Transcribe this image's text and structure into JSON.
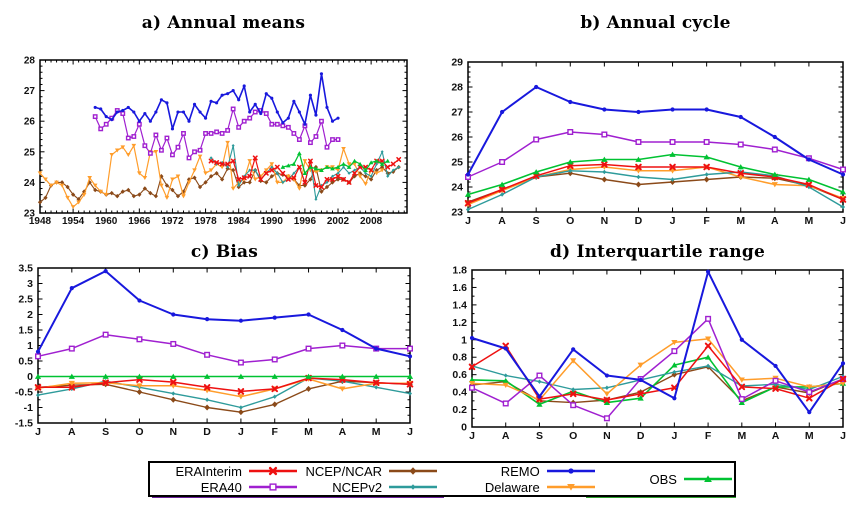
{
  "figure": {
    "background": "#ffffff",
    "text_color": "#000000"
  },
  "series_styles": {
    "ERAInterim": {
      "color": "#ee1111",
      "marker": "x"
    },
    "ERA40": {
      "color": "#a020d0",
      "marker": "square-open"
    },
    "NCEP/NCAR": {
      "color": "#8b4a19",
      "marker": "diamond"
    },
    "NCEPv2": {
      "color": "#2e9b9b",
      "marker": "diamond-small"
    },
    "REMO": {
      "color": "#1818dd",
      "marker": "circle"
    },
    "Delaware": {
      "color": "#ff9d2b",
      "marker": "triangle-down"
    },
    "OBS": {
      "color": "#00c232",
      "marker": "triangle-up"
    }
  },
  "legend": {
    "columns": [
      [
        "ERAInterim",
        "ERA40"
      ],
      [
        "NCEP/NCAR",
        "NCEPv2"
      ],
      [
        "REMO",
        "Delaware"
      ],
      [
        "OBS"
      ]
    ]
  },
  "chart_data": [
    {
      "id": "a",
      "type": "line",
      "title": "a) Annual means",
      "x_axis": {
        "min": 1948,
        "max": 2014.5,
        "minor_step": 1,
        "tick_values": [
          1948,
          1954,
          1960,
          1966,
          1972,
          1978,
          1984,
          1990,
          1996,
          2002,
          2008
        ],
        "tick_labels": [
          "1948",
          "1954",
          "1960",
          "1966",
          "1972",
          "1978",
          "1984",
          "1990",
          "1996",
          "2002",
          "2008"
        ]
      },
      "y_axis": {
        "min": 23,
        "max": 28,
        "minor_step": 0.2,
        "tick_values": [
          23,
          24,
          25,
          26,
          27,
          28
        ],
        "tick_labels": [
          "23",
          "24",
          "25",
          "26",
          "27",
          "28"
        ]
      },
      "series": [
        {
          "name": "NCEP/NCAR",
          "start": 1948,
          "step": 1,
          "values": [
            23.35,
            23.5,
            23.9,
            24.0,
            24.0,
            23.85,
            23.6,
            23.45,
            23.7,
            24.0,
            23.75,
            23.7,
            23.6,
            23.65,
            23.55,
            23.7,
            23.75,
            23.55,
            23.6,
            23.8,
            23.65,
            23.55,
            24.2,
            23.9,
            23.75,
            23.55,
            23.7,
            24.1,
            24.15,
            23.85,
            24.0,
            24.2,
            24.3,
            24.1,
            24.45,
            24.4,
            23.85,
            24.0,
            24.0,
            24.4,
            24.05,
            24.0,
            24.2,
            24.3,
            24.25,
            24.2,
            24.1,
            23.9,
            23.9,
            24.1,
            24.5,
            23.7,
            23.85,
            24.0,
            24.1,
            24.1,
            24.0,
            24.2,
            24.3,
            24.2,
            24.1,
            24.4,
            24.5,
            24.3,
            24.35,
            24.5
          ]
        },
        {
          "name": "Delaware",
          "start": 1948,
          "step": 1,
          "values": [
            24.3,
            24.1,
            23.9,
            24.0,
            23.9,
            23.5,
            23.2,
            23.35,
            23.6,
            24.15,
            23.9,
            23.7,
            23.6,
            24.9,
            25.05,
            25.15,
            24.9,
            25.2,
            24.3,
            24.15,
            25.0,
            25.0,
            23.9,
            23.5,
            24.1,
            24.2,
            23.55,
            24.0,
            24.4,
            24.85,
            24.3,
            24.4,
            24.6,
            24.5,
            25.3,
            23.8,
            24.0,
            24.1,
            24.7,
            24.1,
            24.2,
            24.4,
            24.6,
            24.0,
            24.0,
            24.2,
            24.1,
            23.8,
            24.7,
            24.4,
            24.35,
            24.4,
            24.5,
            24.5,
            24.4,
            25.1,
            24.6,
            24.6,
            24.2,
            23.95,
            24.4,
            24.3,
            24.4
          ]
        },
        {
          "name": "NCEPv2",
          "start": 1979,
          "step": 1,
          "values": [
            24.8,
            24.6,
            24.65,
            24.5,
            25.2,
            23.9,
            24.2,
            24.4,
            24.4,
            24.1,
            24.3,
            24.5,
            24.3,
            24.0,
            24.1,
            24.3,
            24.5,
            24.0,
            24.7,
            23.45,
            23.9,
            24.0,
            24.2,
            24.3,
            24.5,
            24.3,
            24.4,
            24.5,
            24.3,
            24.2,
            24.6,
            25.0,
            24.2,
            24.4,
            24.5
          ]
        },
        {
          "name": "ERAInterim",
          "start": 1979,
          "step": 1,
          "values": [
            24.7,
            24.65,
            24.6,
            24.6,
            24.7,
            24.1,
            24.15,
            24.2,
            24.8,
            24.1,
            24.3,
            24.4,
            24.5,
            24.3,
            24.1,
            24.15,
            24.5,
            24.0,
            24.7,
            23.9,
            23.85,
            24.1,
            24.1,
            24.2,
            24.1,
            24.0,
            24.3,
            24.5,
            24.5,
            24.4,
            24.7,
            24.7,
            24.5,
            24.6,
            24.75
          ]
        },
        {
          "name": "OBS",
          "start": 1992,
          "step": 1,
          "values": [
            24.5,
            24.55,
            24.6,
            24.95,
            24.3,
            24.5,
            24.45,
            24.4,
            24.5,
            24.45,
            24.5,
            24.6,
            24.5,
            24.7,
            24.6,
            24.4,
            24.65,
            24.7,
            24.6,
            24.7
          ]
        },
        {
          "name": "ERA40",
          "start": 1958,
          "step": 1,
          "values": [
            26.15,
            25.75,
            25.9,
            26.1,
            26.35,
            26.25,
            25.45,
            25.5,
            25.9,
            25.2,
            24.95,
            25.55,
            25.05,
            25.45,
            24.9,
            25.15,
            25.6,
            24.8,
            25.0,
            25.05,
            25.6,
            25.6,
            25.65,
            25.6,
            25.7,
            26.4,
            25.8,
            26.0,
            26.1,
            26.3,
            26.35,
            26.25,
            25.9,
            25.9,
            25.85,
            25.8,
            25.6,
            25.4,
            25.85,
            25.3,
            25.5,
            26.0,
            25.15,
            25.4,
            25.4
          ]
        },
        {
          "name": "REMO",
          "start": 1958,
          "step": 1,
          "values": [
            26.45,
            26.4,
            26.15,
            26.05,
            26.3,
            26.35,
            26.45,
            26.3,
            26.0,
            26.25,
            26.0,
            26.3,
            26.7,
            26.6,
            25.75,
            26.3,
            26.3,
            26.0,
            26.55,
            26.3,
            26.1,
            26.65,
            26.6,
            26.85,
            26.9,
            27.0,
            26.7,
            27.15,
            26.3,
            26.55,
            26.25,
            26.9,
            26.75,
            26.3,
            25.95,
            26.1,
            26.65,
            26.3,
            25.9,
            26.85,
            26.2,
            27.55,
            26.45,
            26.0,
            26.1
          ]
        }
      ]
    },
    {
      "id": "b",
      "type": "line",
      "title": "b) Annual cycle",
      "categories": [
        "J",
        "A",
        "S",
        "O",
        "N",
        "D",
        "J",
        "F",
        "M",
        "A",
        "M",
        "J"
      ],
      "y_axis": {
        "min": 23,
        "max": 29,
        "minor_step": 0.2,
        "tick_values": [
          23,
          24,
          25,
          26,
          27,
          28,
          29
        ],
        "tick_labels": [
          "23",
          "24",
          "25",
          "26",
          "27",
          "28",
          "29"
        ]
      },
      "series": [
        {
          "name": "NCEP/NCAR",
          "values": [
            23.4,
            23.9,
            24.4,
            24.55,
            24.3,
            24.1,
            24.2,
            24.3,
            24.4,
            24.35,
            24.05,
            23.5
          ]
        },
        {
          "name": "Delaware",
          "values": [
            23.3,
            23.85,
            24.4,
            24.7,
            24.8,
            24.65,
            24.65,
            24.8,
            24.4,
            24.1,
            24.05,
            23.55
          ]
        },
        {
          "name": "NCEPv2",
          "values": [
            23.1,
            23.7,
            24.4,
            24.65,
            24.6,
            24.4,
            24.3,
            24.5,
            24.6,
            24.45,
            24.0,
            23.2
          ]
        },
        {
          "name": "ERAInterim",
          "values": [
            23.35,
            23.9,
            24.45,
            24.85,
            24.9,
            24.8,
            24.8,
            24.8,
            24.55,
            24.4,
            24.1,
            23.5
          ]
        },
        {
          "name": "OBS",
          "values": [
            23.7,
            24.1,
            24.6,
            25.0,
            25.1,
            25.1,
            25.3,
            25.2,
            24.8,
            24.5,
            24.3,
            23.8
          ]
        },
        {
          "name": "ERA40",
          "values": [
            24.4,
            25.0,
            25.9,
            26.2,
            26.1,
            25.8,
            25.8,
            25.8,
            25.7,
            25.5,
            25.15,
            24.7
          ]
        },
        {
          "name": "REMO",
          "values": [
            24.5,
            27.0,
            28.0,
            27.4,
            27.1,
            27.0,
            27.1,
            27.1,
            26.8,
            26.0,
            25.1,
            24.5
          ]
        }
      ]
    },
    {
      "id": "c",
      "type": "line",
      "title": "c) Bias",
      "categories": [
        "J",
        "A",
        "S",
        "O",
        "N",
        "D",
        "J",
        "F",
        "M",
        "A",
        "M",
        "J"
      ],
      "y_axis": {
        "min": -1.5,
        "max": 3.5,
        "minor_step": 0.25,
        "tick_values": [
          -1.5,
          -1,
          -0.5,
          0,
          0.5,
          1,
          1.5,
          2,
          2.5,
          3,
          3.5
        ],
        "tick_labels": [
          "-1.5",
          "-1",
          "-0.5",
          "0",
          "0.5",
          "1",
          "1.5",
          "2",
          "2.5",
          "3",
          "3.5"
        ]
      },
      "series": [
        {
          "name": "NCEP/NCAR",
          "values": [
            -0.35,
            -0.28,
            -0.25,
            -0.5,
            -0.75,
            -1.0,
            -1.15,
            -0.9,
            -0.4,
            -0.15,
            -0.2,
            -0.25
          ]
        },
        {
          "name": "NCEPv2",
          "values": [
            -0.6,
            -0.4,
            -0.15,
            -0.35,
            -0.55,
            -0.75,
            -1.0,
            -0.65,
            -0.05,
            -0.15,
            -0.35,
            -0.55
          ]
        },
        {
          "name": "Delaware",
          "values": [
            -0.38,
            -0.22,
            -0.2,
            -0.3,
            -0.3,
            -0.45,
            -0.65,
            -0.4,
            -0.08,
            -0.4,
            -0.22,
            -0.22
          ]
        },
        {
          "name": "ERAInterim",
          "values": [
            -0.35,
            -0.35,
            -0.2,
            -0.1,
            -0.18,
            -0.35,
            -0.48,
            -0.4,
            -0.05,
            -0.1,
            -0.2,
            -0.25
          ]
        },
        {
          "name": "OBS",
          "values": [
            0,
            0,
            0,
            0,
            0,
            0,
            0,
            0,
            0,
            0,
            0,
            0
          ]
        },
        {
          "name": "ERA40",
          "values": [
            0.65,
            0.9,
            1.35,
            1.2,
            1.05,
            0.7,
            0.45,
            0.55,
            0.9,
            1.0,
            0.9,
            0.9
          ]
        },
        {
          "name": "REMO",
          "values": [
            0.8,
            2.85,
            3.4,
            2.45,
            2.0,
            1.85,
            1.8,
            1.9,
            2.0,
            1.5,
            0.9,
            0.65
          ]
        }
      ]
    },
    {
      "id": "d",
      "type": "line",
      "title": "d) Interquartile range",
      "categories": [
        "J",
        "A",
        "S",
        "O",
        "N",
        "D",
        "J",
        "F",
        "M",
        "A",
        "M",
        "J"
      ],
      "y_axis": {
        "min": 0,
        "max": 1.8,
        "minor_step": 0.1,
        "tick_values": [
          0,
          0.2,
          0.4,
          0.6,
          0.8,
          1,
          1.2,
          1.4,
          1.6,
          1.8
        ],
        "tick_labels": [
          "0",
          "0.2",
          "0.4",
          "0.6",
          "0.8",
          "1",
          "1.2",
          "1.4",
          "1.6",
          "1.8"
        ]
      },
      "series": [
        {
          "name": "NCEP/NCAR",
          "values": [
            0.48,
            0.52,
            0.3,
            0.28,
            0.31,
            0.4,
            0.6,
            0.69,
            0.3,
            0.46,
            0.39,
            0.55
          ]
        },
        {
          "name": "OBS",
          "values": [
            0.54,
            0.53,
            0.26,
            0.41,
            0.28,
            0.33,
            0.71,
            0.8,
            0.28,
            0.46,
            0.46,
            0.5
          ]
        },
        {
          "name": "NCEPv2",
          "values": [
            0.7,
            0.59,
            0.52,
            0.43,
            0.45,
            0.54,
            0.63,
            0.7,
            0.47,
            0.49,
            0.43,
            0.58
          ]
        },
        {
          "name": "Delaware",
          "values": [
            0.5,
            0.48,
            0.31,
            0.76,
            0.38,
            0.71,
            0.97,
            1.01,
            0.54,
            0.56,
            0.46,
            0.5
          ]
        },
        {
          "name": "ERA40",
          "values": [
            0.45,
            0.27,
            0.59,
            0.25,
            0.1,
            0.55,
            0.87,
            1.24,
            0.32,
            0.53,
            0.4,
            0.55
          ]
        },
        {
          "name": "ERAInterim",
          "values": [
            0.69,
            0.93,
            0.32,
            0.38,
            0.31,
            0.38,
            0.45,
            0.93,
            0.46,
            0.44,
            0.33,
            0.55
          ]
        },
        {
          "name": "REMO",
          "values": [
            1.02,
            0.9,
            0.35,
            0.89,
            0.59,
            0.54,
            0.33,
            1.78,
            1.0,
            0.7,
            0.17,
            0.73
          ]
        }
      ]
    }
  ]
}
